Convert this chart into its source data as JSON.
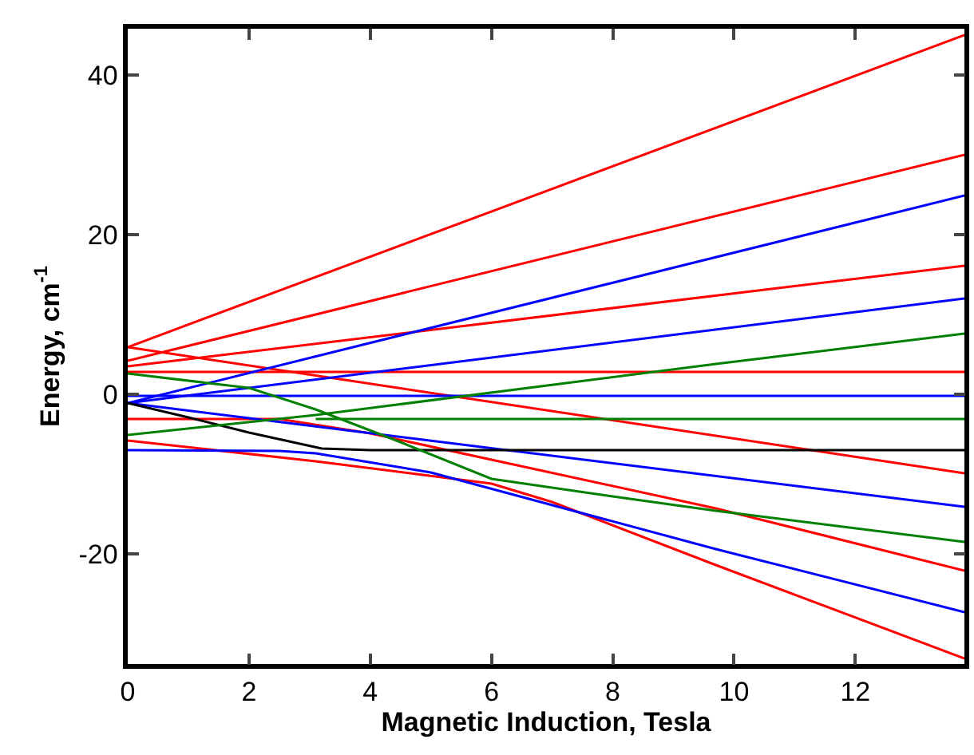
{
  "chart_data": {
    "type": "line",
    "xlabel": "Magnetic Induction, Tesla",
    "ylabel": "Energy, cm$^{-1}$",
    "xlim": [
      0,
      13.8
    ],
    "ylim": [
      -33.8,
      45.8
    ],
    "xticks": [
      0,
      2,
      4,
      6,
      8,
      10,
      12
    ],
    "yticks": [
      -20,
      0,
      20,
      40
    ],
    "marker": "none",
    "line_style": "solid",
    "series": [
      {
        "color": "#ff0000",
        "x": [
          0,
          13.8
        ],
        "values": [
          5.9,
          45
        ]
      },
      {
        "color": "#ff0000",
        "x": [
          0,
          13.8
        ],
        "values": [
          4.2,
          30
        ]
      },
      {
        "color": "#ff0000",
        "x": [
          0,
          13.8
        ],
        "values": [
          3.5,
          16.1
        ]
      },
      {
        "color": "#ff0000",
        "x": [
          0,
          13.8
        ],
        "values": [
          2.8,
          2.8
        ]
      },
      {
        "color": "#ff0000",
        "x": [
          0,
          13.8
        ],
        "values": [
          5.9,
          -9.9
        ]
      },
      {
        "color": "#ff0000",
        "x": [
          0,
          2.5,
          4,
          9.7,
          13.8
        ],
        "values": [
          -3.1,
          -3.1,
          -4.9,
          -14.3,
          -22.1
        ]
      },
      {
        "color": "#ff0000",
        "x": [
          0,
          3.1,
          6,
          7,
          9.7,
          13.8
        ],
        "values": [
          -5.8,
          -8.4,
          -11.2,
          -13.5,
          -21.4,
          -33.1
        ]
      },
      {
        "color": "#0000ff",
        "x": [
          0,
          13.8
        ],
        "values": [
          -1.1,
          24.9
        ]
      },
      {
        "color": "#0000ff",
        "x": [
          0,
          13.8
        ],
        "values": [
          -1.1,
          12
        ]
      },
      {
        "color": "#0000ff",
        "x": [
          0,
          13.8
        ],
        "values": [
          -0.2,
          -0.2
        ]
      },
      {
        "color": "#0000ff",
        "x": [
          0,
          13.8
        ],
        "values": [
          -1.1,
          -14.1
        ]
      },
      {
        "color": "#0000ff",
        "x": [
          0,
          2.5,
          3.1,
          5,
          9.7,
          13.8
        ],
        "values": [
          -7,
          -7.1,
          -7.4,
          -9.8,
          -19.4,
          -27.3
        ]
      },
      {
        "color": "#000000",
        "x": [
          0,
          1,
          2,
          3.2,
          4,
          13.8
        ],
        "values": [
          -1.1,
          -2.9,
          -4.8,
          -6.8,
          -7,
          -7
        ]
      },
      {
        "color": "#008000",
        "x": [
          0,
          2,
          3.1,
          4.5,
          6,
          8,
          9.7,
          13.8
        ],
        "values": [
          2.6,
          0.8,
          -1.9,
          -6,
          -10.6,
          -12.8,
          -14.6,
          -18.5
        ]
      },
      {
        "color": "#008000",
        "x": [
          0,
          3.1,
          9.7,
          13.8
        ],
        "values": [
          -5.1,
          -2.6,
          3.8,
          7.6
        ]
      },
      {
        "color": "#008000",
        "x": [
          3.1,
          13.8
        ],
        "values": [
          -3.1,
          -3.1
        ]
      }
    ]
  }
}
